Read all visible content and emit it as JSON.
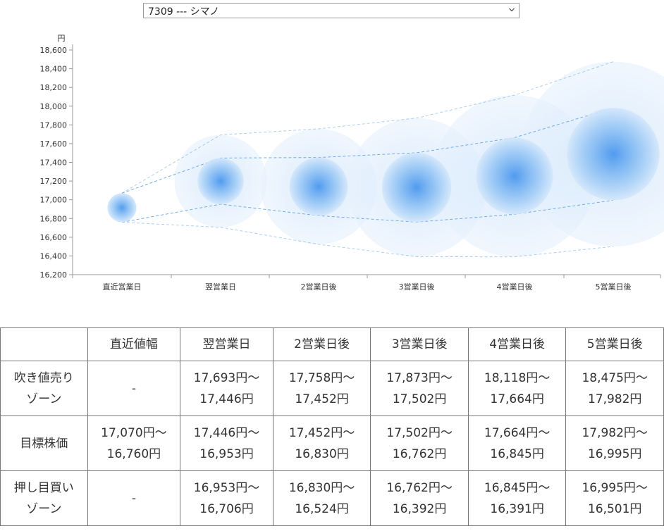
{
  "selector": {
    "selected": "7309 --- シマノ"
  },
  "chart_data": {
    "type": "bubble-band",
    "ylabel": "円",
    "ylim": [
      16200,
      18600
    ],
    "yticks": [
      16200,
      16400,
      16600,
      16800,
      17000,
      17200,
      17400,
      17600,
      17800,
      18000,
      18200,
      18400,
      18600
    ],
    "ytick_labels": [
      "16,200",
      "16,400",
      "16,600",
      "16,800",
      "17,000",
      "17,200",
      "17,400",
      "17,600",
      "17,800",
      "18,000",
      "18,200",
      "18,400",
      "18,600"
    ],
    "categories": [
      "直近営業日",
      "翌営業日",
      "2営業日後",
      "3営業日後",
      "4営業日後",
      "5営業日後"
    ],
    "outer_upper": [
      17070,
      17693,
      17758,
      17873,
      18118,
      18475
    ],
    "inner_upper": [
      17070,
      17446,
      17452,
      17502,
      17664,
      17982
    ],
    "inner_lower": [
      16760,
      16953,
      16830,
      16762,
      16845,
      16995
    ],
    "outer_lower": [
      16760,
      16706,
      16524,
      16392,
      16391,
      16501
    ],
    "colors": {
      "bubble": "#3d8ff0",
      "band": "#6aa8e8"
    }
  },
  "table": {
    "corner": "",
    "headers": [
      "直近値幅",
      "翌営業日",
      "2営業日後",
      "3営業日後",
      "4営業日後",
      "5営業日後"
    ],
    "rows": [
      {
        "label": [
          "吹き値売り",
          "ゾーン"
        ],
        "cells": [
          [
            "-"
          ],
          [
            "17,693円〜",
            "17,446円"
          ],
          [
            "17,758円〜",
            "17,452円"
          ],
          [
            "17,873円〜",
            "17,502円"
          ],
          [
            "18,118円〜",
            "17,664円"
          ],
          [
            "18,475円〜",
            "17,982円"
          ]
        ]
      },
      {
        "label": [
          "目標株価"
        ],
        "cells": [
          [
            "17,070円〜",
            "16,760円"
          ],
          [
            "17,446円〜",
            "16,953円"
          ],
          [
            "17,452円〜",
            "16,830円"
          ],
          [
            "17,502円〜",
            "16,762円"
          ],
          [
            "17,664円〜",
            "16,845円"
          ],
          [
            "17,982円〜",
            "16,995円"
          ]
        ]
      },
      {
        "label": [
          "押し目買い",
          "ゾーン"
        ],
        "cells": [
          [
            "-"
          ],
          [
            "16,953円〜",
            "16,706円"
          ],
          [
            "16,830円〜",
            "16,524円"
          ],
          [
            "16,762円〜",
            "16,392円"
          ],
          [
            "16,845円〜",
            "16,391円"
          ],
          [
            "16,995円〜",
            "16,501円"
          ]
        ]
      }
    ]
  }
}
